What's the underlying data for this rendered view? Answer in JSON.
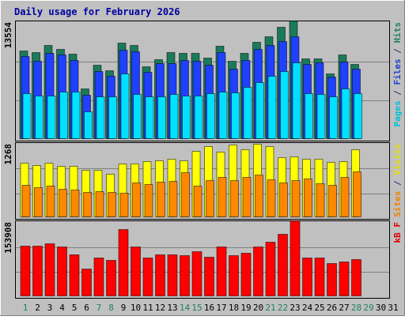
{
  "chart_data": {
    "type": "bar",
    "title": "Daily usage for February 2026",
    "days": [
      "1",
      "2",
      "3",
      "4",
      "5",
      "6",
      "7",
      "8",
      "9",
      "10",
      "11",
      "12",
      "13",
      "14",
      "15",
      "16",
      "17",
      "18",
      "19",
      "20",
      "21",
      "22",
      "23",
      "24",
      "25",
      "26",
      "27",
      "28",
      "29",
      "30",
      "31"
    ],
    "weekend_days": [
      "1",
      "7",
      "8",
      "14",
      "15",
      "21",
      "22",
      "28",
      "29"
    ],
    "data_days": 28,
    "panels": [
      {
        "name": "pages-files-hits",
        "max_label": "13554",
        "ymax": 13554,
        "side_label": {
          "parts": [
            "Pages",
            " / ",
            "Files",
            " / ",
            "Hits"
          ],
          "colors": [
            "#00c0d8",
            "#303060",
            "#2040d0",
            "#303060",
            "#208060"
          ]
        },
        "series": [
          {
            "name": "Hits",
            "color": "#1a7a5a",
            "values": [
              10100,
              9900,
              10700,
              10300,
              9700,
              5750,
              8450,
              7800,
              11000,
              10700,
              8300,
              9100,
              9950,
              9800,
              9800,
              9300,
              10600,
              8950,
              9850,
              11100,
              11700,
              12800,
              13554,
              9150,
              9200,
              7450,
              9600,
              8550
            ]
          },
          {
            "name": "Files",
            "color": "#2040ff",
            "values": [
              9500,
              8900,
              9800,
              9650,
              9000,
              5000,
              7700,
              7200,
              10150,
              10000,
              7650,
              8600,
              8650,
              9050,
              8900,
              8500,
              9900,
              8050,
              9050,
              10300,
              10700,
              11200,
              11700,
              8550,
              8700,
              7050,
              8800,
              8000
            ]
          },
          {
            "name": "Pages",
            "color": "#00e0ff",
            "values": [
              5200,
              4900,
              4900,
              5400,
              5400,
              3050,
              4850,
              4800,
              7500,
              5050,
              4850,
              4850,
              5050,
              4900,
              4950,
              5150,
              5400,
              5250,
              5900,
              6500,
              7200,
              7700,
              8700,
              5150,
              5100,
              4800,
              5700,
              5200
            ]
          }
        ]
      },
      {
        "name": "visits-sites",
        "max_label": "1268",
        "ymax": 1268,
        "side_label": {
          "parts": [
            "Sites",
            " / ",
            "Visits"
          ],
          "colors": [
            "#f08000",
            "#303060",
            "#e0e000"
          ]
        },
        "series": [
          {
            "name": "Visits",
            "color": "#ffff00",
            "values": [
              920,
              880,
              920,
              860,
              860,
              800,
              790,
              730,
              900,
              900,
              950,
              960,
              980,
              960,
              1120,
              1200,
              1100,
              1230,
              1140,
              1240,
              1200,
              1010,
              1020,
              980,
              990,
              930,
              950,
              1140
            ]
          },
          {
            "name": "Sites",
            "color": "#ff8800",
            "values": [
              540,
              500,
              520,
              470,
              460,
              420,
              430,
              420,
              400,
              580,
              550,
              590,
              610,
              760,
              530,
              620,
              680,
              620,
              680,
              720,
              630,
              580,
              620,
              650,
              560,
              540,
              670,
              770
            ]
          }
        ]
      },
      {
        "name": "kbytes",
        "max_label": "153908",
        "ymax": 153908,
        "side_label": {
          "parts": [
            "kB F"
          ],
          "colors": [
            "#e00000"
          ]
        },
        "series": [
          {
            "name": "kB F",
            "color": "#ff0000",
            "values": [
              102000,
              101500,
              107000,
              101000,
              85000,
              55000,
              78000,
              73000,
              136000,
              100000,
              78000,
              84000,
              85000,
              83000,
              91000,
              80000,
              101000,
              83000,
              88000,
              101000,
              110000,
              127000,
              153908,
              78000,
              77000,
              67000,
              70000,
              74000
            ]
          }
        ]
      }
    ]
  }
}
